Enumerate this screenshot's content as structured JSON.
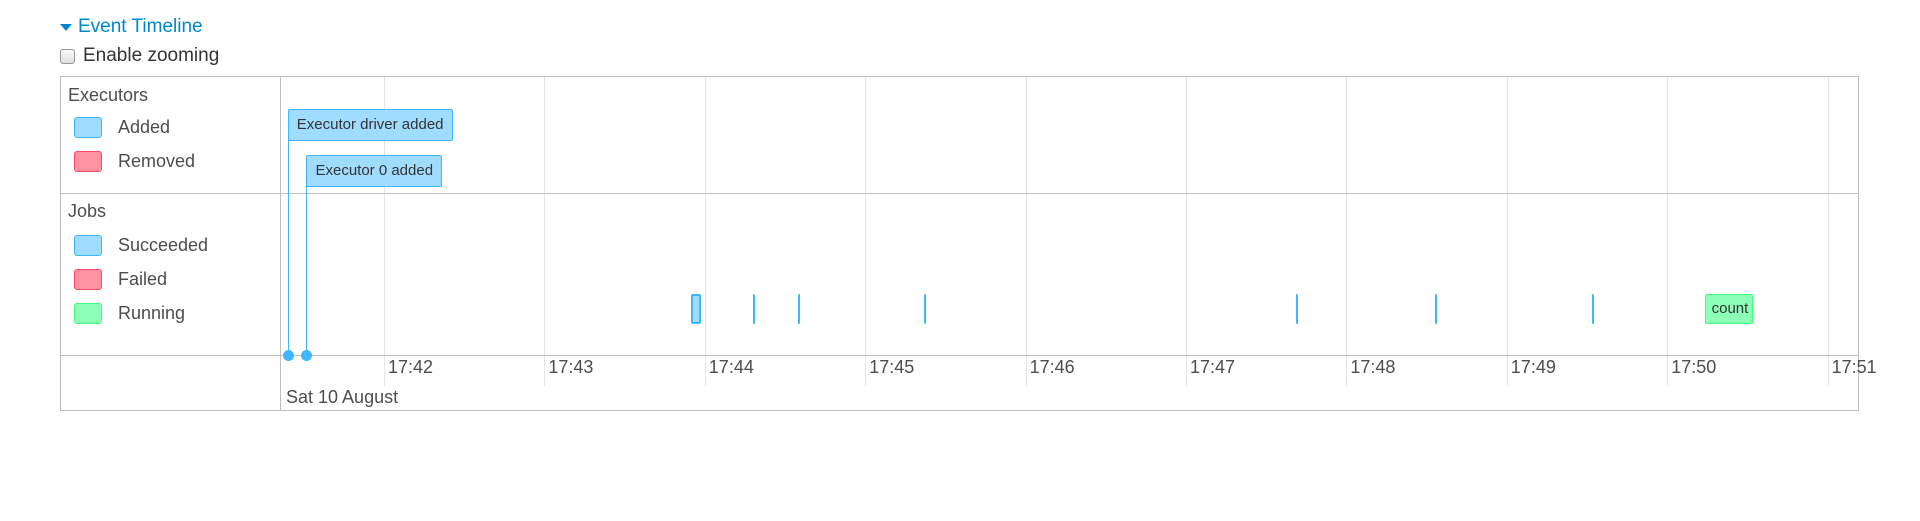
{
  "header": {
    "title": "Event Timeline",
    "expanded": true,
    "zoom_label": "Enable zooming",
    "zoom_checked": false
  },
  "colors": {
    "succeeded_fill": "#A0DCFF",
    "succeeded_border": "#3EB7FF",
    "failed_fill": "#FF91A1",
    "failed_border": "#FF4766",
    "running_fill": "#8DFFB7",
    "running_border": "#3EFF7D"
  },
  "groups": {
    "executors": {
      "title": "Executors",
      "legend": [
        {
          "label": "Added",
          "status": "succeeded"
        },
        {
          "label": "Removed",
          "status": "failed"
        }
      ]
    },
    "jobs": {
      "title": "Jobs",
      "legend": [
        {
          "label": "Succeeded",
          "status": "succeeded"
        },
        {
          "label": "Failed",
          "status": "failed"
        },
        {
          "label": "Running",
          "status": "running"
        }
      ]
    }
  },
  "executor_events": [
    {
      "label": "Executor driver added",
      "time": "17:41:24"
    },
    {
      "label": "Executor 0 added",
      "time": "17:41:31"
    }
  ],
  "jobs": [
    {
      "start": "17:43:55",
      "end": "17:43:57",
      "status": "succeeded",
      "label": ""
    },
    {
      "start": "17:44:18",
      "end": "17:44:18",
      "status": "succeeded",
      "label": ""
    },
    {
      "start": "17:44:35",
      "end": "17:44:35",
      "status": "succeeded",
      "label": ""
    },
    {
      "start": "17:45:22",
      "end": "17:45:22",
      "status": "succeeded",
      "label": ""
    },
    {
      "start": "17:47:41",
      "end": "17:47:42",
      "status": "succeeded",
      "label": ""
    },
    {
      "start": "17:48:33",
      "end": "17:48:33",
      "status": "succeeded",
      "label": ""
    },
    {
      "start": "17:49:32",
      "end": "17:49:32",
      "status": "succeeded",
      "label": ""
    },
    {
      "start": "17:50:14",
      "end": "17:50:32",
      "status": "running",
      "label": "count"
    }
  ],
  "axis": {
    "ticks": [
      "17:42",
      "17:43",
      "17:44",
      "17:45",
      "17:46",
      "17:47",
      "17:48",
      "17:49",
      "17:50",
      "17:51"
    ],
    "date_label": "Sat 10 August"
  }
}
